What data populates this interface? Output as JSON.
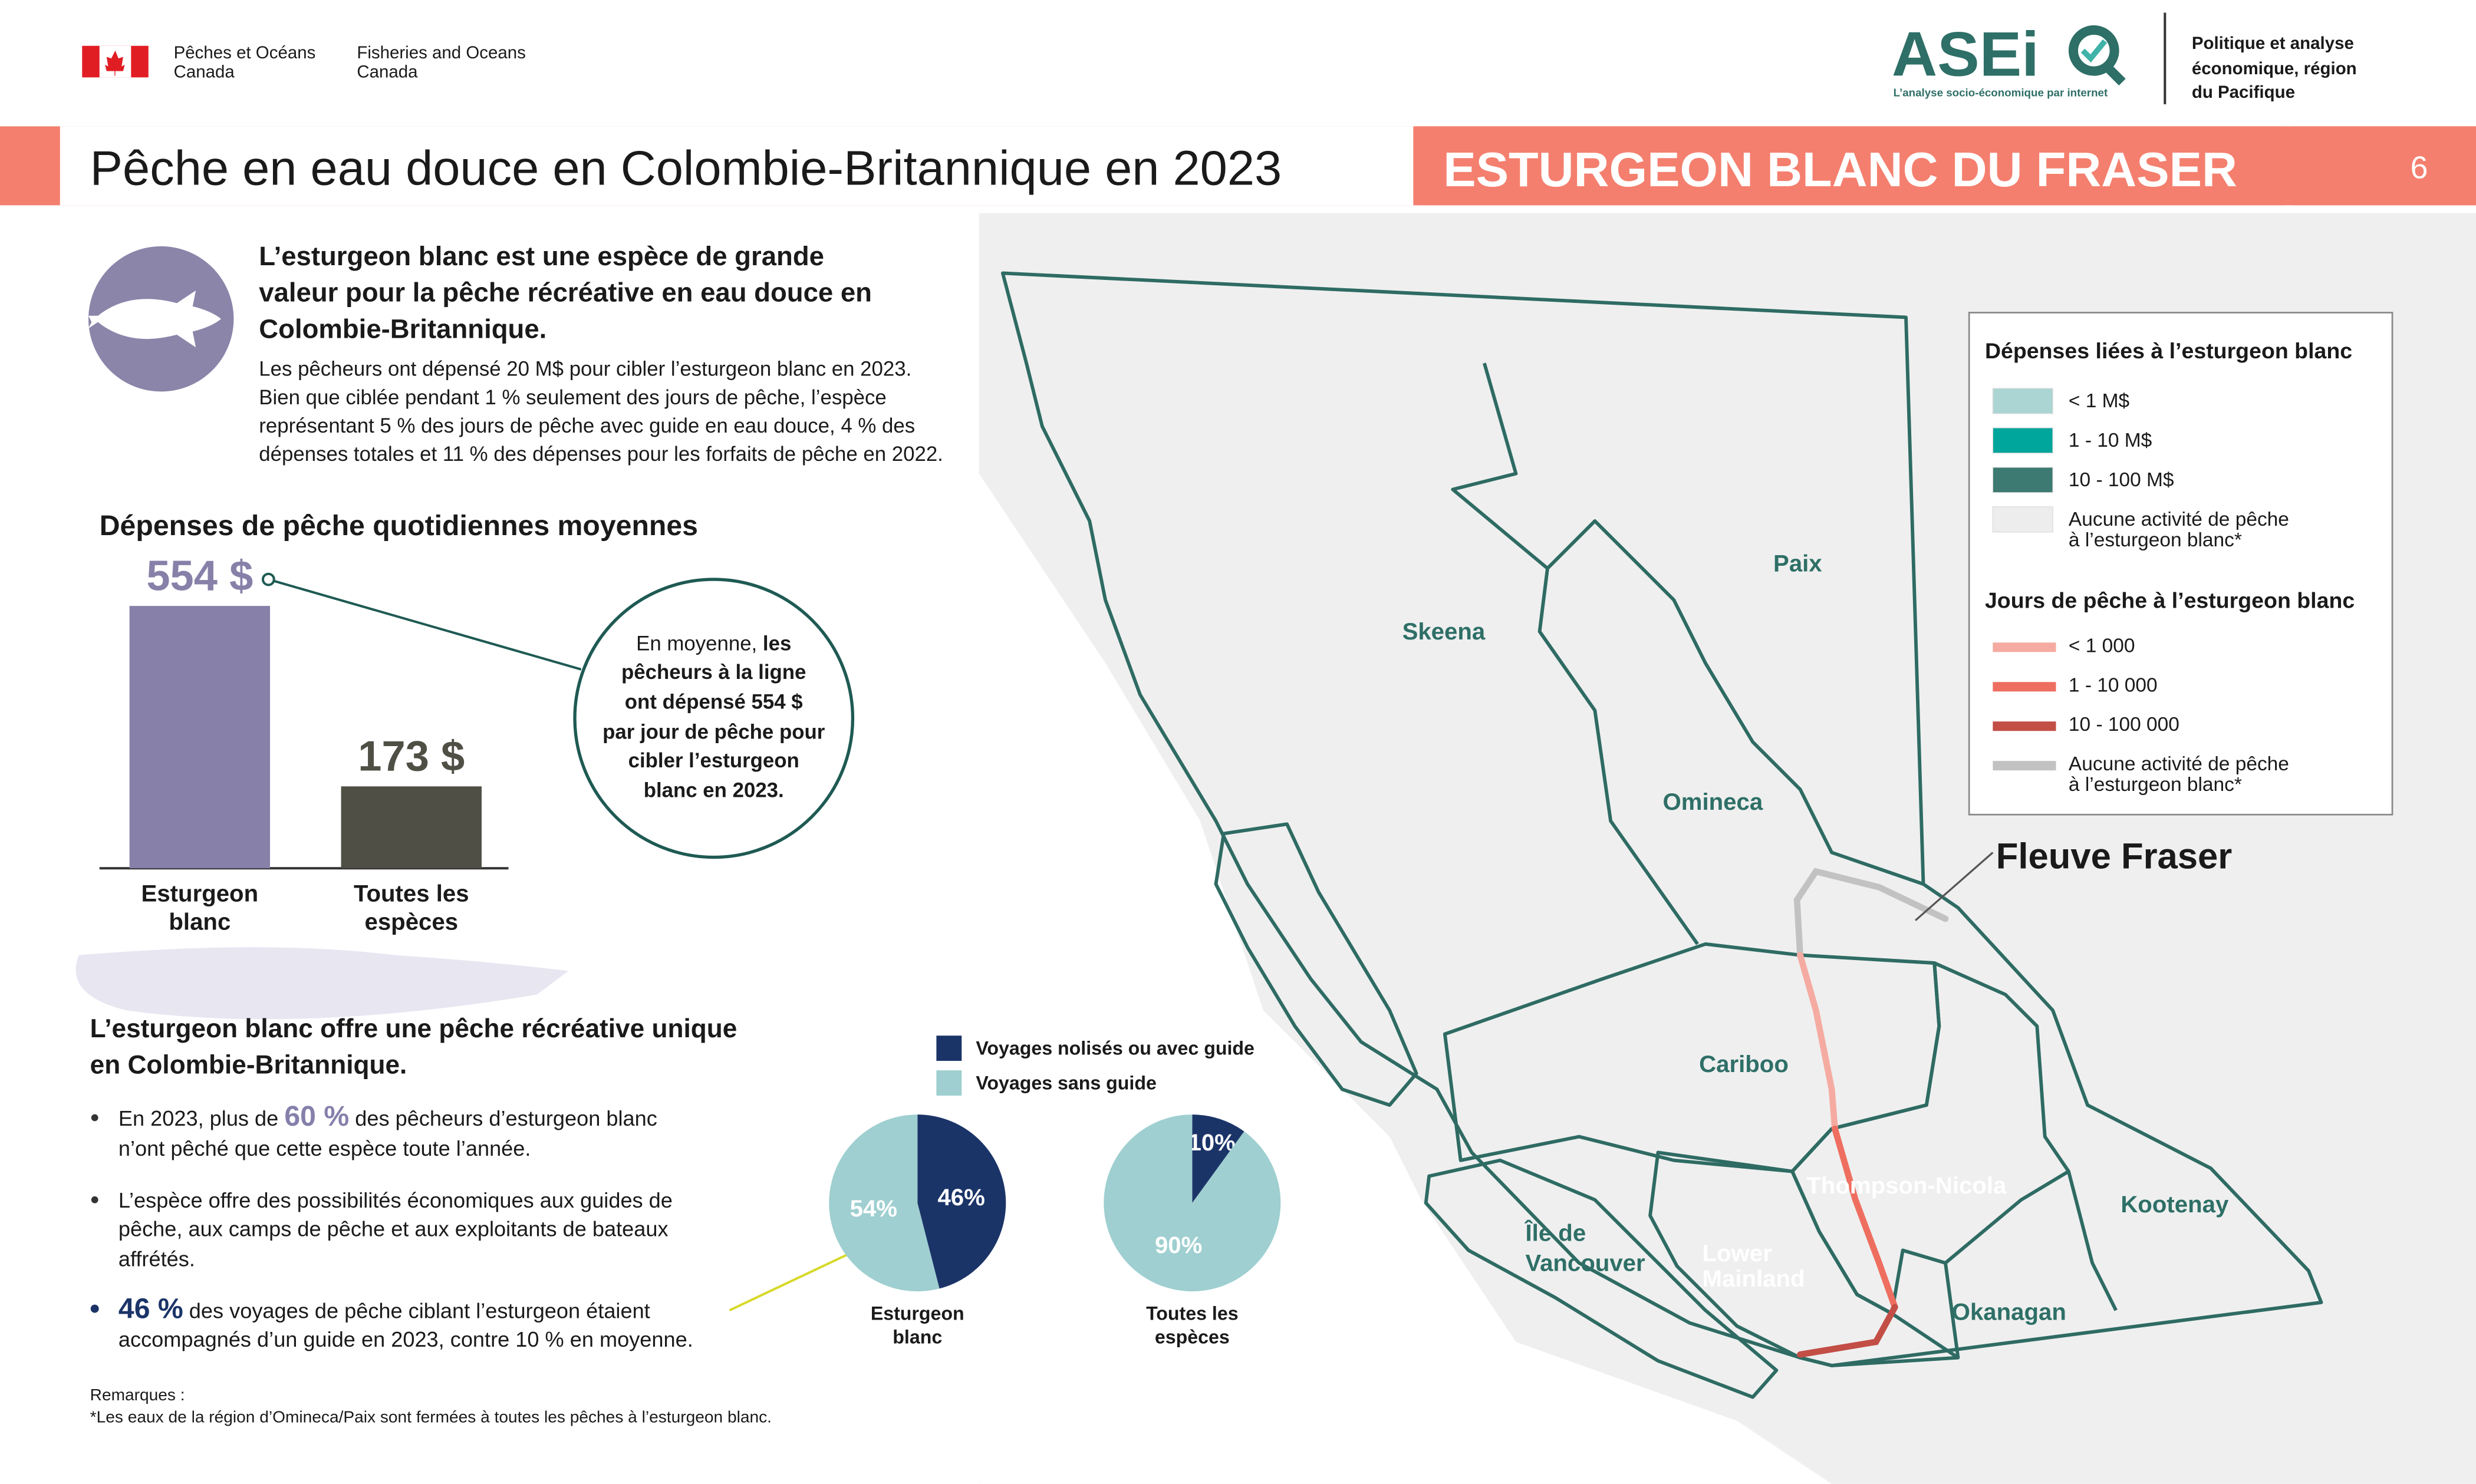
{
  "header": {
    "org_fr": [
      "Pêches et Océans",
      "Canada"
    ],
    "org_en": [
      "Fisheries and Oceans",
      "Canada"
    ],
    "logo": "ASEi",
    "logo_tagline": "L’analyse socio-économique par internet",
    "unit": [
      "Politique et analyse",
      "économique, région",
      "du Pacifique"
    ],
    "title": "Pêche en eau douce en Colombie-Britannique en 2023",
    "subtitle": "ESTURGEON BLANC DU FRASER",
    "page": 6
  },
  "intro": {
    "heading": [
      "L’esturgeon blanc est une espèce de grande",
      "valeur pour la pêche récréative en eau douce en",
      "Colombie-Britannique."
    ],
    "body": [
      "Les pêcheurs ont dépensé 20 M$ pour cibler l’esturgeon blanc en 2023.",
      "Bien que ciblée pendant 1 % seulement des jours de pêche, l’espèce",
      "représentant 5 % des jours de pêche avec guide en eau douce, 4 % des",
      "dépenses totales et 11 % des dépenses pour les forfaits de pêche en 2022."
    ]
  },
  "bar_chart": {
    "title": "Dépenses de pêche quotidiennes moyennes",
    "categories": [
      [
        "Esturgeon",
        "blanc"
      ],
      [
        "Toutes les",
        "espèces"
      ]
    ],
    "values": [
      554,
      173
    ],
    "value_labels": [
      "554 $",
      "173 $"
    ],
    "colors": [
      "#8781a9",
      "#4f4f45"
    ]
  },
  "callout": {
    "plain": "En moyenne,",
    "bold_lines": [
      "les",
      "pêcheurs à la ligne",
      "ont dépensé 554 $",
      "par jour de pêche pour",
      "cibler l’esturgeon",
      "blanc en 2023."
    ]
  },
  "unique": {
    "heading": [
      "L’esturgeon blanc offre une pêche récréative unique",
      "en Colombie-Britannique."
    ],
    "bullets": [
      {
        "lead": "En 2023, plus de ",
        "highlight": "60 %",
        "lines": [
          " des pêcheurs d’esturgeon blanc",
          "n’ont pêché que cette espèce toute l’année."
        ]
      },
      {
        "lines": [
          "L’espèce offre des possibilités économiques aux guides de",
          "pêche, aux camps de pêche et aux exploitants de bateaux",
          "affrétés."
        ]
      },
      {
        "highlight": "46 %",
        "lines": [
          " des voyages de pêche ciblant l’esturgeon étaient",
          "accompagnés d’un guide en 2023, contre 10 % en moyenne."
        ]
      }
    ]
  },
  "pie_charts": {
    "series": [
      {
        "name": "Voyages nolisés ou avec guide",
        "color": "#1b3468"
      },
      {
        "name": "Voyages sans guide",
        "color": "#9fcfd0"
      }
    ],
    "pies": [
      {
        "label": [
          "Esturgeon",
          "blanc"
        ],
        "values": [
          46,
          54
        ],
        "value_labels": [
          "46%",
          "54%"
        ]
      },
      {
        "label": [
          "Toutes les",
          "espèces"
        ],
        "values": [
          10,
          90
        ],
        "value_labels": [
          "10%",
          "90%"
        ]
      }
    ]
  },
  "map": {
    "spending_legend": {
      "title": "Dépenses liées à l’esturgeon blanc",
      "items": [
        {
          "label": [
            "< 1 M$"
          ],
          "color": "#abd5d3"
        },
        {
          "label": [
            "1 - 10 M$"
          ],
          "color": "#00a59c"
        },
        {
          "label": [
            "10 - 100 M$"
          ],
          "color": "#3c7a72"
        },
        {
          "label": [
            "Aucune activité de pêche",
            "à l’esturgeon blanc*"
          ],
          "color": "#ededed"
        }
      ]
    },
    "days_legend": {
      "title": "Jours de pêche à l’esturgeon blanc",
      "items": [
        {
          "label": [
            "< 1 000"
          ],
          "color": "#f5aba1"
        },
        {
          "label": [
            "1 - 10 000"
          ],
          "color": "#ee6e60"
        },
        {
          "label": [
            "10 - 100 000"
          ],
          "color": "#c24e46"
        },
        {
          "label": [
            "Aucune activité de pêche",
            "à l’esturgeon blanc*"
          ],
          "color": "#c2c2c2"
        }
      ]
    },
    "river": "Fleuve Fraser",
    "regions": [
      "Skeena",
      "Paix",
      "Omineca",
      "Cariboo",
      "Thompson-Nicola",
      "Kootenay",
      "Okanagan",
      [
        "Lower",
        "Mainland"
      ],
      [
        "Île de",
        "Vancouver"
      ]
    ]
  },
  "notes": [
    "Remarques :",
    "*Les eaux de la région d’Omineca/Paix sont fermées à toutes les pêches à l’esturgeon blanc."
  ]
}
